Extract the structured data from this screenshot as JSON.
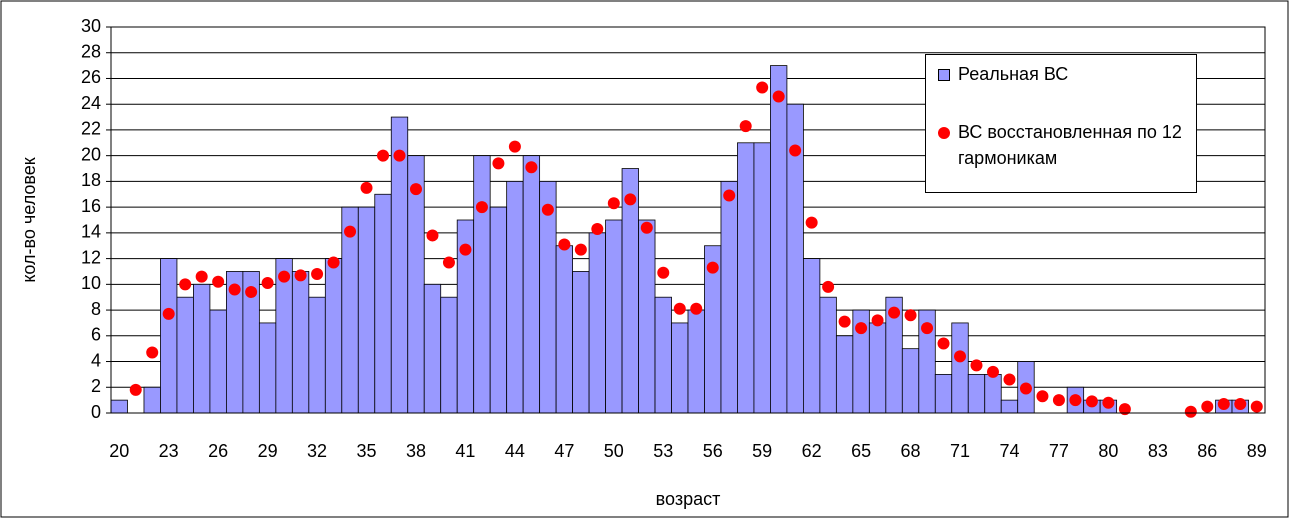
{
  "chart_data": {
    "type": "bar",
    "x_label": "возраст",
    "y_label": "кол-во человек",
    "categories": [
      "20",
      null,
      null,
      "23",
      null,
      null,
      "26",
      null,
      null,
      "29",
      null,
      null,
      "32",
      null,
      null,
      "35",
      null,
      null,
      "38",
      null,
      null,
      "41",
      null,
      null,
      "44",
      null,
      null,
      "47",
      null,
      null,
      "50",
      null,
      null,
      "53",
      null,
      null,
      "56",
      null,
      null,
      "59",
      null,
      null,
      "62",
      null,
      null,
      "65",
      null,
      null,
      "68",
      null,
      null,
      "71",
      null,
      null,
      "74",
      null,
      null,
      "77",
      null,
      null,
      "80",
      null,
      null,
      "83",
      null,
      null,
      "86",
      null,
      null,
      "89"
    ],
    "series": [
      {
        "name": "Реальная ВС",
        "type": "bar",
        "color": "#9999ff",
        "values": [
          1,
          0,
          2,
          12,
          9,
          10,
          8,
          11,
          11,
          7,
          12,
          11,
          9,
          12,
          16,
          16,
          17,
          23,
          20,
          10,
          9,
          15,
          20,
          16,
          18,
          20,
          18,
          13,
          11,
          14,
          15,
          19,
          15,
          9,
          7,
          8,
          13,
          18,
          21,
          21,
          27,
          24,
          12,
          9,
          6,
          8,
          7,
          9,
          5,
          8,
          3,
          7,
          3,
          3,
          1,
          4,
          0,
          0,
          2,
          1,
          1,
          0,
          0,
          0,
          0,
          0,
          0,
          1,
          1,
          0
        ]
      },
      {
        "name": "ВС восстановленная по 12 гармоникам",
        "type": "scatter",
        "color": "#ff0000",
        "values": [
          null,
          1.8,
          4.7,
          7.7,
          10,
          10.6,
          10.2,
          9.6,
          9.4,
          10.1,
          10.6,
          10.7,
          10.8,
          11.7,
          14.1,
          17.5,
          20,
          20,
          17.4,
          13.8,
          11.7,
          12.7,
          16,
          19.4,
          20.7,
          19.1,
          15.8,
          13.1,
          12.7,
          14.3,
          16.3,
          16.6,
          14.4,
          10.9,
          8.1,
          8.1,
          11.3,
          16.9,
          22.3,
          25.3,
          24.6,
          20.4,
          14.8,
          9.8,
          7.1,
          6.6,
          7.2,
          7.8,
          7.6,
          6.6,
          5.4,
          4.4,
          3.7,
          3.2,
          2.6,
          1.9,
          1.3,
          1.0,
          1.0,
          0.9,
          0.8,
          0.3,
          null,
          null,
          null,
          0.1,
          0.5,
          0.7,
          0.7,
          0.5
        ]
      }
    ],
    "ylim": [
      0,
      30
    ],
    "yticks": [
      0,
      2,
      4,
      6,
      8,
      10,
      12,
      14,
      16,
      18,
      20,
      22,
      24,
      26,
      28,
      30
    ],
    "grid": true,
    "legend": "upper right"
  }
}
